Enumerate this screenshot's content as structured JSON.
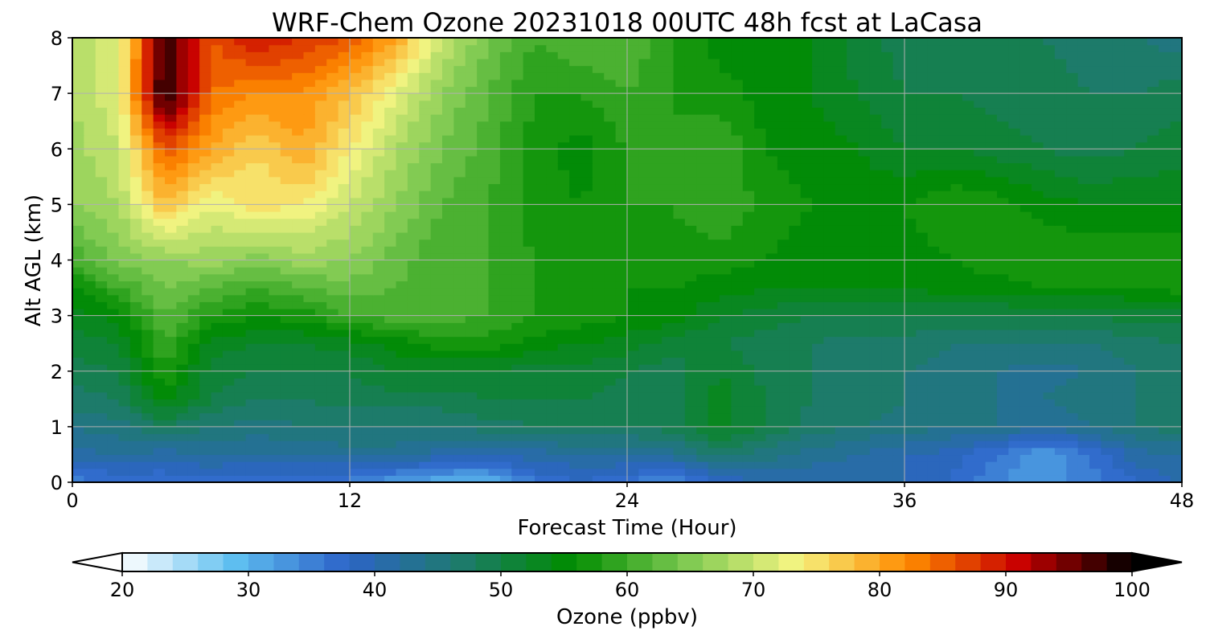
{
  "chart_data": {
    "type": "heatmap",
    "title": "WRF-Chem Ozone  20231018 00UTC 48h fcst at LaCasa",
    "xlabel": "Forecast Time (Hour)",
    "ylabel": "Alt AGL (km)",
    "xlim": [
      0,
      48
    ],
    "ylim": [
      0,
      8
    ],
    "xticks": [
      0,
      12,
      24,
      36,
      48
    ],
    "yticks": [
      0,
      1,
      2,
      3,
      4,
      5,
      6,
      7,
      8
    ],
    "grid": true,
    "x": [
      0,
      2,
      4,
      6,
      8,
      10,
      12,
      14,
      16,
      18,
      20,
      22,
      24,
      26,
      28,
      30,
      32,
      34,
      36,
      38,
      40,
      42,
      44,
      46,
      48
    ],
    "y": [
      0,
      0.5,
      1,
      1.5,
      2,
      2.5,
      3,
      3.5,
      4,
      5,
      6,
      7,
      8
    ],
    "z": [
      [
        35,
        36,
        36,
        37,
        36,
        36,
        35,
        32,
        30,
        30,
        36,
        38,
        36,
        33,
        38,
        40,
        40,
        40,
        40,
        38,
        34,
        33,
        35,
        38,
        40
      ],
      [
        41,
        42,
        41,
        42,
        42,
        42,
        43,
        43,
        41,
        40,
        41,
        42,
        42,
        43,
        47,
        45,
        43,
        42,
        40,
        39,
        36,
        32,
        36,
        41,
        42
      ],
      [
        44,
        45,
        48,
        46,
        45,
        46,
        46,
        46,
        46,
        47,
        48,
        48,
        48,
        49,
        53,
        50,
        47,
        46,
        45,
        44,
        44,
        42,
        44,
        46,
        47
      ],
      [
        47,
        48,
        55,
        50,
        48,
        48,
        49,
        49,
        49,
        50,
        50,
        50,
        49,
        49,
        53,
        50,
        48,
        47,
        46,
        45,
        44,
        44,
        45,
        46,
        47
      ],
      [
        49,
        50,
        58,
        51,
        50,
        50,
        50,
        52,
        52,
        52,
        51,
        51,
        50,
        49,
        52,
        49,
        48,
        47,
        46,
        45,
        44,
        43,
        44,
        46,
        47
      ],
      [
        51,
        52,
        60,
        53,
        52,
        52,
        53,
        55,
        57,
        57,
        55,
        54,
        53,
        51,
        50,
        49,
        48,
        47,
        47,
        46,
        46,
        46,
        46,
        47,
        48
      ],
      [
        53,
        55,
        62,
        58,
        56,
        57,
        60,
        61,
        61,
        60,
        58,
        57,
        56,
        55,
        52,
        51,
        50,
        50,
        50,
        50,
        50,
        50,
        50,
        51,
        51
      ],
      [
        55,
        60,
        64,
        62,
        60,
        62,
        63,
        62,
        61,
        60,
        58,
        57,
        56,
        56,
        55,
        54,
        54,
        54,
        54,
        55,
        55,
        56,
        56,
        56,
        57
      ],
      [
        60,
        65,
        66,
        67,
        65,
        67,
        66,
        63,
        60,
        60,
        58,
        57,
        57,
        57,
        57,
        56,
        55,
        54,
        55,
        56,
        57,
        58,
        58,
        58,
        58
      ],
      [
        66,
        68,
        78,
        72,
        75,
        74,
        70,
        66,
        62,
        60,
        57,
        56,
        58,
        58,
        60,
        57,
        56,
        55,
        56,
        58,
        57,
        55,
        54,
        54,
        54
      ],
      [
        67,
        70,
        86,
        80,
        76,
        80,
        74,
        68,
        64,
        61,
        57,
        55,
        58,
        58,
        60,
        56,
        55,
        54,
        52,
        52,
        51,
        50,
        49,
        50,
        51
      ],
      [
        68,
        72,
        100,
        84,
        82,
        82,
        78,
        72,
        66,
        62,
        58,
        58,
        60,
        58,
        57,
        55,
        54,
        52,
        50,
        50,
        49,
        49,
        48,
        48,
        49
      ],
      [
        68,
        72,
        98,
        86,
        90,
        88,
        86,
        80,
        70,
        64,
        60,
        62,
        62,
        58,
        55,
        55,
        54,
        51,
        49,
        48,
        48,
        48,
        47,
        46,
        45
      ]
    ],
    "colorbar": {
      "label": "Ozone  (ppbv)",
      "min": 20,
      "max": 100,
      "ticks": [
        20,
        30,
        40,
        50,
        60,
        70,
        80,
        90,
        100
      ],
      "extend": "both",
      "colors": [
        "#ffffff",
        "#5fbff0",
        "#2d64c8",
        "#1e7a6e",
        "#008c00",
        "#7ac850",
        "#f5f582",
        "#ff8c00",
        "#c80000",
        "#000000"
      ]
    }
  }
}
